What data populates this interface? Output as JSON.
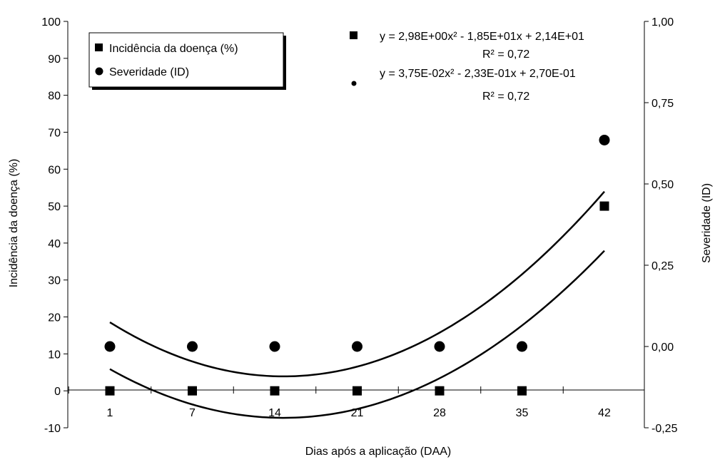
{
  "chart_data": {
    "type": "scatter",
    "categories": [
      "1",
      "7",
      "14",
      "21",
      "28",
      "35",
      "42"
    ],
    "xlabel": "Dias após a aplicação (DAA)",
    "ylabel_left": "Incidência da doença (%)",
    "ylabel_right": "Severidade (ID)",
    "ylim_left": [
      -10,
      100
    ],
    "yticks_left": [
      "-10",
      "0",
      "10",
      "20",
      "30",
      "40",
      "50",
      "60",
      "70",
      "80",
      "90",
      "100"
    ],
    "ylim_right": [
      -0.25,
      1.0
    ],
    "yticks_right": [
      "-0,25",
      "0,00",
      "0,25",
      "0,50",
      "0,75",
      "1,00"
    ],
    "grid": false,
    "legend_position": "top-left",
    "series": [
      {
        "name": "Incidência da doença (%)",
        "axis": "left",
        "marker": "square",
        "values": [
          0,
          0,
          0,
          0,
          0,
          0,
          50
        ],
        "trend": {
          "a": 2.98,
          "b": -18.5,
          "c": 21.4,
          "equation": "y = 2,98E+00x² - 1,85E+01x + 2,14E+01",
          "r2": "R² = 0,72"
        }
      },
      {
        "name": "Severidade (ID)",
        "axis": "right",
        "marker": "circle",
        "values": [
          0,
          0,
          0,
          0,
          0,
          0,
          0.635
        ],
        "trend": {
          "a": 0.0375,
          "b": -0.233,
          "c": 0.27,
          "equation": "y = 3,75E-02x² -  2,33E-01x  + 2,70E-01",
          "r2": "R² = 0,72"
        }
      }
    ]
  }
}
